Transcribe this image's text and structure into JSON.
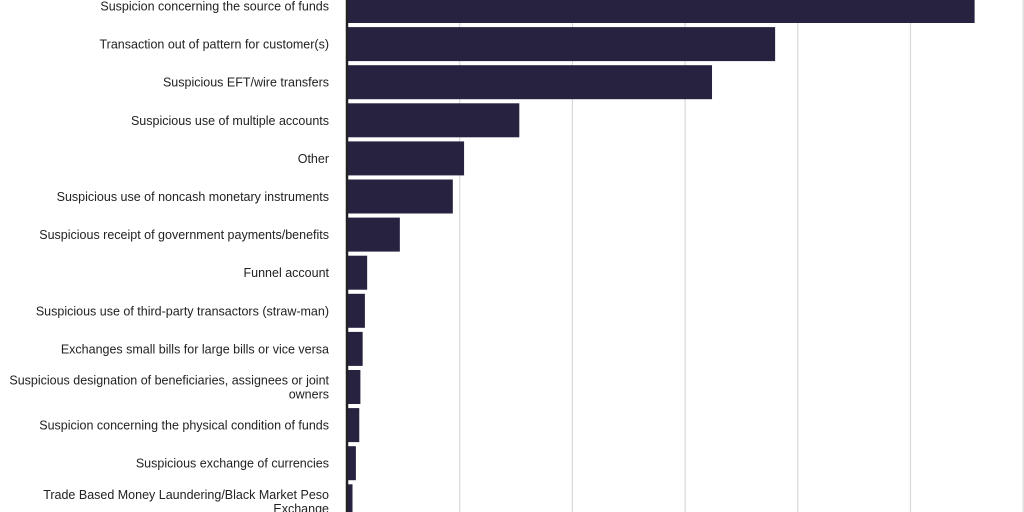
{
  "chart_data": {
    "type": "bar",
    "orientation": "horizontal",
    "title": "",
    "xlabel": "",
    "ylabel": "",
    "categories": [
      "Suspicion concerning the source of funds",
      "Transaction out of pattern for customer(s)",
      "Suspicious EFT/wire transfers",
      "Suspicious use of multiple accounts",
      "Other",
      "Suspicious use of noncash monetary instruments",
      "Suspicious receipt of government payments/benefits",
      "Funnel account",
      "Suspicious use of third-party transactors (straw-man)",
      "Exchanges small bills for large bills or vice versa",
      "Suspicious designation of beneficiaries, assignees or joint owners",
      "Suspicion concerning the physical condition of funds",
      "Suspicious exchange of currencies",
      "Trade Based Money Laundering/Black Market Peso Exchange"
    ],
    "label_lines": [
      [
        "Suspicion concerning the source of funds"
      ],
      [
        "Transaction out of pattern for customer(s)"
      ],
      [
        "Suspicious EFT/wire transfers"
      ],
      [
        "Suspicious use of multiple accounts"
      ],
      [
        "Other"
      ],
      [
        "Suspicious use of noncash monetary instruments"
      ],
      [
        "Suspicious receipt of government payments/benefits"
      ],
      [
        "Funnel account"
      ],
      [
        "Suspicious use of third-party transactors (straw-man)"
      ],
      [
        "Exchanges small bills for large bills or vice versa"
      ],
      [
        "Suspicious designation of beneficiaries, assignees or joint",
        "owners"
      ],
      [
        "Suspicion concerning the physical condition of funds"
      ],
      [
        "Suspicious exchange of currencies"
      ],
      [
        "Trade Based Money Laundering/Black Market Peso",
        "Exchange"
      ]
    ],
    "values": [
      5.56,
      3.79,
      3.23,
      1.52,
      1.03,
      0.93,
      0.46,
      0.17,
      0.15,
      0.13,
      0.11,
      0.1,
      0.07,
      0.04
    ],
    "xlim": [
      0,
      6
    ],
    "gridlines": [
      0,
      1,
      2,
      3,
      4,
      5,
      6
    ],
    "grid": true,
    "legend": "none",
    "bar_color": "#272240",
    "grid_color": "#d9d9d9",
    "axis_color": "#222222"
  }
}
